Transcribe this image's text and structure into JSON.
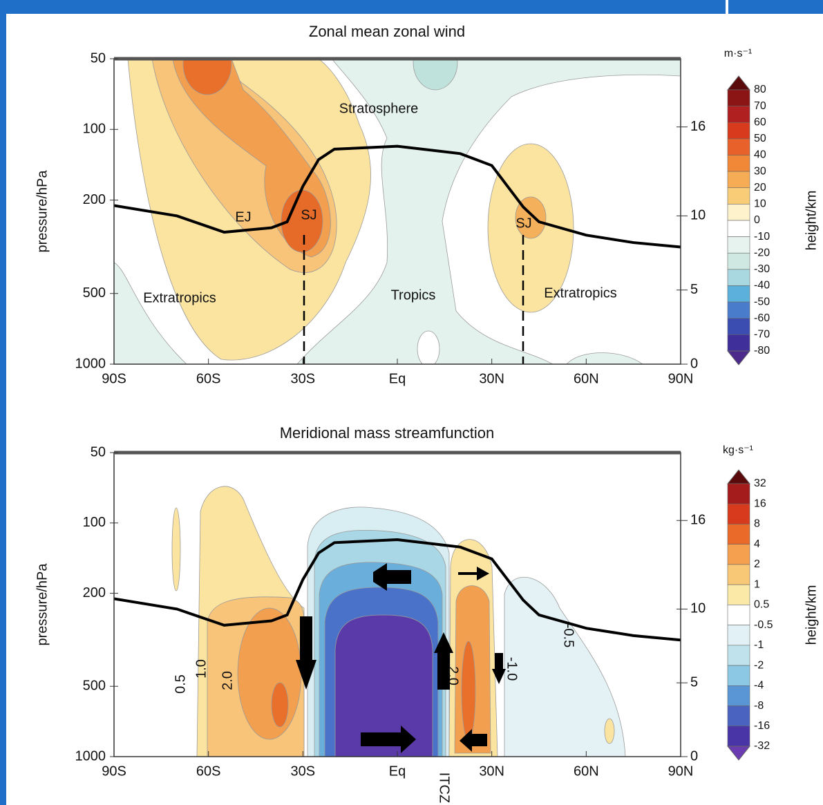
{
  "chart_data": [
    {
      "type": "contour",
      "title": "Zonal mean zonal wind",
      "ylabel": "pressure/hPa",
      "y2label": "height/km",
      "xlim": [
        -90,
        90
      ],
      "xticks": [
        {
          "value": -90,
          "label": "90S"
        },
        {
          "value": -60,
          "label": "60S"
        },
        {
          "value": -30,
          "label": "30S"
        },
        {
          "value": 0,
          "label": "Eq"
        },
        {
          "value": 30,
          "label": "30N"
        },
        {
          "value": 60,
          "label": "60N"
        },
        {
          "value": 90,
          "label": "90N"
        }
      ],
      "ylim": [
        1000,
        50
      ],
      "log_y": true,
      "yticks": [
        50,
        100,
        200,
        500,
        1000
      ],
      "y2lim": [
        0,
        20.6
      ],
      "y2ticks": [
        0,
        5,
        10,
        16
      ],
      "series": [
        {
          "color": "#000000",
          "axis": "y2",
          "x": [
            -90,
            -70,
            -55,
            -40,
            -35,
            -30,
            -25,
            -20,
            0,
            20,
            30,
            35,
            40,
            45,
            60,
            75,
            90
          ],
          "values": [
            10.7,
            10.0,
            8.9,
            9.2,
            9.6,
            12.0,
            13.8,
            14.5,
            14.7,
            14.2,
            13.4,
            12.0,
            10.6,
            9.6,
            8.7,
            8.2,
            7.9
          ]
        }
      ],
      "annotations": [
        "Stratosphere",
        "EJ",
        "SJ",
        "SJ",
        "Extratropics",
        "Tropics",
        "Extratropics"
      ],
      "colorbar": {
        "unit": "m·s⁻¹",
        "levels": [
          80,
          70,
          60,
          50,
          40,
          30,
          20,
          10,
          0,
          -10,
          -20,
          -30,
          -40,
          -50,
          -60,
          -70,
          -80
        ],
        "colors": [
          "#5a0a0a",
          "#8b1515",
          "#b02020",
          "#d83a1e",
          "#e8602a",
          "#f08838",
          "#f6ac55",
          "#f9cc78",
          "#fdf2cc",
          "#ffffff",
          "#e6f3ef",
          "#cfe8e2",
          "#a9d8e0",
          "#5bb0dc",
          "#4a7ccc",
          "#3b4db0",
          "#3e2f9a",
          "#4b2a8c"
        ]
      }
    },
    {
      "type": "contour",
      "title": "Meridional mass streamfunction",
      "ylabel": "pressure/hPa",
      "y2label": "height/km",
      "xlim": [
        -90,
        90
      ],
      "xticks": [
        {
          "value": -90,
          "label": "90S"
        },
        {
          "value": -60,
          "label": "60S"
        },
        {
          "value": -30,
          "label": "30S"
        },
        {
          "value": 0,
          "label": "Eq"
        },
        {
          "value": 30,
          "label": "30N"
        },
        {
          "value": 60,
          "label": "60N"
        },
        {
          "value": 90,
          "label": "90N"
        }
      ],
      "ylim": [
        1000,
        50
      ],
      "log_y": true,
      "yticks": [
        50,
        100,
        200,
        500,
        1000
      ],
      "y2lim": [
        0,
        20.6
      ],
      "y2ticks": [
        0,
        5,
        10,
        16
      ],
      "series": [
        {
          "color": "#000000",
          "axis": "y2",
          "x": [
            -90,
            -70,
            -55,
            -40,
            -35,
            -30,
            -25,
            -20,
            0,
            20,
            30,
            35,
            40,
            45,
            60,
            75,
            90
          ],
          "values": [
            10.7,
            10.0,
            8.9,
            9.2,
            9.6,
            12.0,
            13.8,
            14.5,
            14.7,
            14.2,
            13.4,
            12.0,
            10.6,
            9.6,
            8.7,
            8.2,
            7.9
          ]
        }
      ],
      "annotations": [
        "0.5",
        "1.0",
        "2.0",
        "2.0",
        "-1.0",
        "-0.5",
        "ITCZ"
      ],
      "colorbar": {
        "unit": "kg·s⁻¹",
        "levels": [
          32,
          16,
          8,
          4,
          2,
          1,
          0.5,
          -0.5,
          -1,
          -2,
          -4,
          -8,
          -16,
          -32
        ],
        "colors": [
          "#5a0a0a",
          "#a51c1c",
          "#d83a1e",
          "#ea6a2a",
          "#f4a04f",
          "#f8c877",
          "#fbe9a8",
          "#ffffff",
          "#e2f1f5",
          "#bfe2ec",
          "#8cc8e4",
          "#5a96d6",
          "#4a62c0",
          "#4a35a6",
          "#6a3cb0"
        ]
      }
    }
  ]
}
